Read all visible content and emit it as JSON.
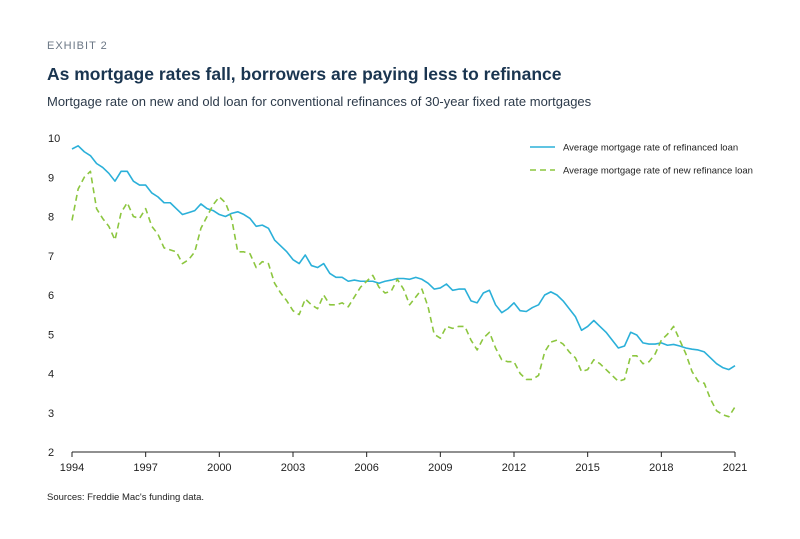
{
  "header": {
    "exhibit": "EXHIBIT 2",
    "title": "As mortgage rates fall, borrowers are paying less to refinance",
    "subtitle": "Mortgage rate on new and old loan for conventional refinances of 30-year fixed rate mortgages"
  },
  "footer": {
    "source": "Sources: Freddie Mac's funding data."
  },
  "colors": {
    "refinanced": "#2bb0d9",
    "new_refinance": "#8cc63f",
    "axis": "#222222"
  },
  "chart_data": {
    "type": "line",
    "title": "As mortgage rates fall, borrowers are paying less to refinance",
    "subtitle": "Mortgage rate on new and old loan for conventional refinances of 30-year fixed rate mortgages",
    "xlabel": "",
    "ylabel": "",
    "xlim": [
      1994,
      2021
    ],
    "ylim": [
      2,
      10
    ],
    "x_ticks": [
      1994,
      1997,
      2000,
      2003,
      2006,
      2009,
      2012,
      2015,
      2018,
      2021
    ],
    "y_ticks": [
      2,
      3,
      4,
      5,
      6,
      7,
      8,
      9,
      10
    ],
    "grid": false,
    "legend_position": "top-right",
    "series": [
      {
        "name": "Average mortgage rate of refinanced loan",
        "style": "solid",
        "points": [
          [
            1994.0,
            9.72
          ],
          [
            1994.25,
            9.8
          ],
          [
            1994.5,
            9.65
          ],
          [
            1994.75,
            9.55
          ],
          [
            1995.0,
            9.35
          ],
          [
            1995.25,
            9.25
          ],
          [
            1995.5,
            9.1
          ],
          [
            1995.75,
            8.9
          ],
          [
            1996.0,
            9.15
          ],
          [
            1996.25,
            9.15
          ],
          [
            1996.5,
            8.9
          ],
          [
            1996.75,
            8.8
          ],
          [
            1997.0,
            8.8
          ],
          [
            1997.25,
            8.6
          ],
          [
            1997.5,
            8.5
          ],
          [
            1997.75,
            8.35
          ],
          [
            1998.0,
            8.35
          ],
          [
            1998.25,
            8.2
          ],
          [
            1998.5,
            8.05
          ],
          [
            1998.75,
            8.1
          ],
          [
            1999.0,
            8.15
          ],
          [
            1999.25,
            8.32
          ],
          [
            1999.5,
            8.2
          ],
          [
            1999.75,
            8.15
          ],
          [
            2000.0,
            8.05
          ],
          [
            2000.25,
            8.0
          ],
          [
            2000.5,
            8.08
          ],
          [
            2000.75,
            8.12
          ],
          [
            2001.0,
            8.05
          ],
          [
            2001.25,
            7.95
          ],
          [
            2001.5,
            7.75
          ],
          [
            2001.75,
            7.78
          ],
          [
            2002.0,
            7.7
          ],
          [
            2002.25,
            7.4
          ],
          [
            2002.5,
            7.25
          ],
          [
            2002.75,
            7.1
          ],
          [
            2003.0,
            6.9
          ],
          [
            2003.25,
            6.8
          ],
          [
            2003.5,
            7.02
          ],
          [
            2003.75,
            6.75
          ],
          [
            2004.0,
            6.7
          ],
          [
            2004.25,
            6.8
          ],
          [
            2004.5,
            6.55
          ],
          [
            2004.75,
            6.45
          ],
          [
            2005.0,
            6.45
          ],
          [
            2005.25,
            6.35
          ],
          [
            2005.5,
            6.38
          ],
          [
            2005.75,
            6.35
          ],
          [
            2006.0,
            6.35
          ],
          [
            2006.25,
            6.35
          ],
          [
            2006.5,
            6.3
          ],
          [
            2006.75,
            6.35
          ],
          [
            2007.0,
            6.38
          ],
          [
            2007.25,
            6.42
          ],
          [
            2007.5,
            6.42
          ],
          [
            2007.75,
            6.4
          ],
          [
            2008.0,
            6.45
          ],
          [
            2008.25,
            6.4
          ],
          [
            2008.5,
            6.3
          ],
          [
            2008.75,
            6.15
          ],
          [
            2009.0,
            6.18
          ],
          [
            2009.25,
            6.28
          ],
          [
            2009.5,
            6.12
          ],
          [
            2009.75,
            6.15
          ],
          [
            2010.0,
            6.15
          ],
          [
            2010.25,
            5.85
          ],
          [
            2010.5,
            5.8
          ],
          [
            2010.75,
            6.05
          ],
          [
            2011.0,
            6.12
          ],
          [
            2011.25,
            5.75
          ],
          [
            2011.5,
            5.55
          ],
          [
            2011.75,
            5.65
          ],
          [
            2012.0,
            5.8
          ],
          [
            2012.25,
            5.6
          ],
          [
            2012.5,
            5.58
          ],
          [
            2012.75,
            5.68
          ],
          [
            2013.0,
            5.75
          ],
          [
            2013.25,
            6.0
          ],
          [
            2013.5,
            6.08
          ],
          [
            2013.75,
            6.0
          ],
          [
            2014.0,
            5.85
          ],
          [
            2014.25,
            5.65
          ],
          [
            2014.5,
            5.45
          ],
          [
            2014.75,
            5.1
          ],
          [
            2015.0,
            5.2
          ],
          [
            2015.25,
            5.35
          ],
          [
            2015.5,
            5.2
          ],
          [
            2015.75,
            5.05
          ],
          [
            2016.0,
            4.85
          ],
          [
            2016.25,
            4.65
          ],
          [
            2016.5,
            4.7
          ],
          [
            2016.75,
            5.05
          ],
          [
            2017.0,
            4.98
          ],
          [
            2017.25,
            4.78
          ],
          [
            2017.5,
            4.75
          ],
          [
            2017.75,
            4.75
          ],
          [
            2018.0,
            4.78
          ],
          [
            2018.25,
            4.72
          ],
          [
            2018.5,
            4.74
          ],
          [
            2018.75,
            4.7
          ],
          [
            2019.0,
            4.65
          ],
          [
            2019.25,
            4.62
          ],
          [
            2019.5,
            4.6
          ],
          [
            2019.75,
            4.55
          ],
          [
            2020.0,
            4.4
          ],
          [
            2020.25,
            4.25
          ],
          [
            2020.5,
            4.15
          ],
          [
            2020.75,
            4.1
          ],
          [
            2021.0,
            4.2
          ]
        ]
      },
      {
        "name": "Average mortgage rate of new refinance loan",
        "style": "dashed",
        "points": [
          [
            1994.0,
            7.9
          ],
          [
            1994.25,
            8.7
          ],
          [
            1994.5,
            9.0
          ],
          [
            1994.75,
            9.15
          ],
          [
            1995.0,
            8.2
          ],
          [
            1995.25,
            7.95
          ],
          [
            1995.5,
            7.75
          ],
          [
            1995.75,
            7.4
          ],
          [
            1996.0,
            8.1
          ],
          [
            1996.25,
            8.35
          ],
          [
            1996.5,
            8.0
          ],
          [
            1996.75,
            7.95
          ],
          [
            1997.0,
            8.2
          ],
          [
            1997.25,
            7.75
          ],
          [
            1997.5,
            7.55
          ],
          [
            1997.75,
            7.2
          ],
          [
            1998.0,
            7.15
          ],
          [
            1998.25,
            7.1
          ],
          [
            1998.5,
            6.8
          ],
          [
            1998.75,
            6.9
          ],
          [
            1999.0,
            7.1
          ],
          [
            1999.25,
            7.7
          ],
          [
            1999.5,
            8.0
          ],
          [
            1999.75,
            8.3
          ],
          [
            2000.0,
            8.5
          ],
          [
            2000.25,
            8.35
          ],
          [
            2000.5,
            7.95
          ],
          [
            2000.75,
            7.1
          ],
          [
            2001.0,
            7.1
          ],
          [
            2001.25,
            7.05
          ],
          [
            2001.5,
            6.7
          ],
          [
            2001.75,
            6.85
          ],
          [
            2002.0,
            6.8
          ],
          [
            2002.25,
            6.3
          ],
          [
            2002.5,
            6.05
          ],
          [
            2002.75,
            5.85
          ],
          [
            2003.0,
            5.6
          ],
          [
            2003.25,
            5.5
          ],
          [
            2003.5,
            5.9
          ],
          [
            2003.75,
            5.75
          ],
          [
            2004.0,
            5.65
          ],
          [
            2004.25,
            6.0
          ],
          [
            2004.5,
            5.75
          ],
          [
            2004.75,
            5.75
          ],
          [
            2005.0,
            5.8
          ],
          [
            2005.25,
            5.7
          ],
          [
            2005.5,
            5.95
          ],
          [
            2005.75,
            6.2
          ],
          [
            2006.0,
            6.35
          ],
          [
            2006.25,
            6.5
          ],
          [
            2006.5,
            6.2
          ],
          [
            2006.75,
            6.05
          ],
          [
            2007.0,
            6.1
          ],
          [
            2007.25,
            6.4
          ],
          [
            2007.5,
            6.15
          ],
          [
            2007.75,
            5.75
          ],
          [
            2008.0,
            5.95
          ],
          [
            2008.25,
            6.15
          ],
          [
            2008.5,
            5.7
          ],
          [
            2008.75,
            5.0
          ],
          [
            2009.0,
            4.9
          ],
          [
            2009.25,
            5.2
          ],
          [
            2009.5,
            5.15
          ],
          [
            2009.75,
            5.2
          ],
          [
            2010.0,
            5.2
          ],
          [
            2010.25,
            4.85
          ],
          [
            2010.5,
            4.6
          ],
          [
            2010.75,
            4.9
          ],
          [
            2011.0,
            5.05
          ],
          [
            2011.25,
            4.65
          ],
          [
            2011.5,
            4.35
          ],
          [
            2011.75,
            4.3
          ],
          [
            2012.0,
            4.3
          ],
          [
            2012.25,
            4.0
          ],
          [
            2012.5,
            3.85
          ],
          [
            2012.75,
            3.85
          ],
          [
            2013.0,
            3.95
          ],
          [
            2013.25,
            4.55
          ],
          [
            2013.5,
            4.8
          ],
          [
            2013.75,
            4.85
          ],
          [
            2014.0,
            4.75
          ],
          [
            2014.25,
            4.55
          ],
          [
            2014.5,
            4.4
          ],
          [
            2014.75,
            4.05
          ],
          [
            2015.0,
            4.1
          ],
          [
            2015.25,
            4.35
          ],
          [
            2015.5,
            4.25
          ],
          [
            2015.75,
            4.1
          ],
          [
            2016.0,
            3.95
          ],
          [
            2016.25,
            3.8
          ],
          [
            2016.5,
            3.85
          ],
          [
            2016.75,
            4.45
          ],
          [
            2017.0,
            4.45
          ],
          [
            2017.25,
            4.25
          ],
          [
            2017.5,
            4.3
          ],
          [
            2017.75,
            4.5
          ],
          [
            2018.0,
            4.85
          ],
          [
            2018.25,
            5.0
          ],
          [
            2018.5,
            5.2
          ],
          [
            2018.75,
            4.85
          ],
          [
            2019.0,
            4.5
          ],
          [
            2019.25,
            4.05
          ],
          [
            2019.5,
            3.8
          ],
          [
            2019.75,
            3.75
          ],
          [
            2020.0,
            3.35
          ],
          [
            2020.25,
            3.05
          ],
          [
            2020.5,
            2.95
          ],
          [
            2020.75,
            2.9
          ],
          [
            2021.0,
            3.15
          ]
        ]
      }
    ]
  }
}
